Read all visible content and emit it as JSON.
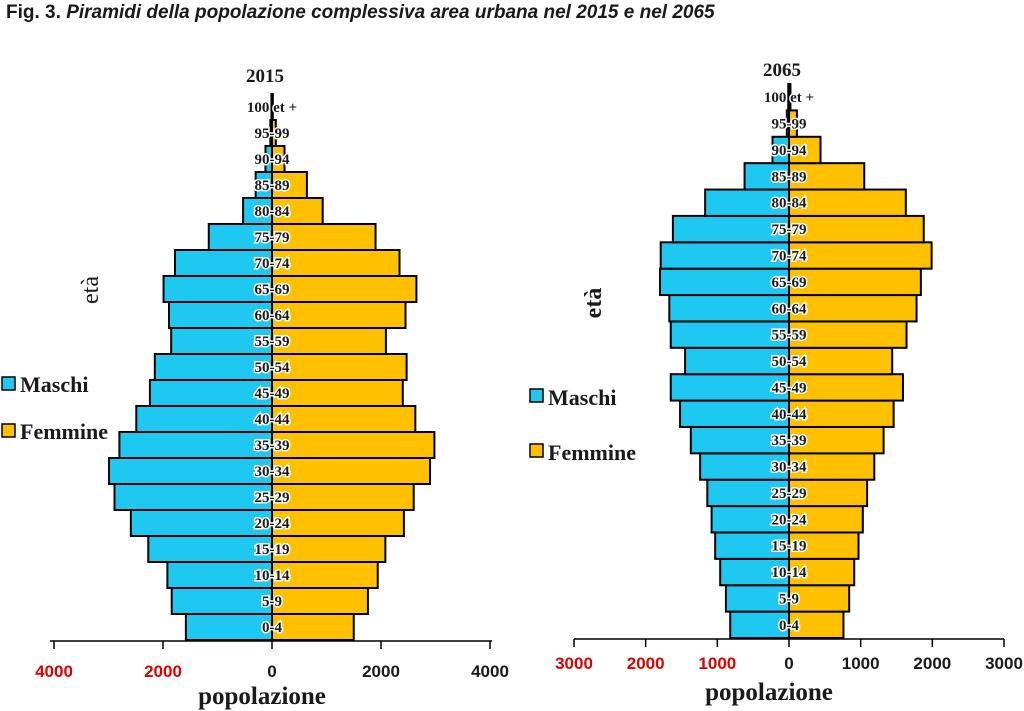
{
  "title": {
    "prefix": "Fig. 3.",
    "text": "Piramidi della popolazione complessiva area urbana nel 2015 e nel 2065"
  },
  "colors": {
    "maschi": "#1fc8f0",
    "femmine": "#ffc000",
    "negative_tick": "#e00000",
    "positive_tick": "#1a1a1a"
  },
  "chart_data": [
    {
      "type": "bar",
      "orientation": "horizontal",
      "subtype": "population-pyramid",
      "title": "2015",
      "xlabel": "popolazione",
      "ylabel": "età",
      "xlim": [
        -4000,
        4000
      ],
      "xticks": [
        -4000,
        -2000,
        0,
        2000,
        4000
      ],
      "xtick_labels": [
        "4000",
        "2000",
        "0",
        "2000",
        "4000"
      ],
      "legend_position": "left",
      "categories": [
        "0-4",
        "5-9",
        "10-14",
        "15-19",
        "20-24",
        "25-29",
        "30-34",
        "35-39",
        "40-44",
        "45-49",
        "50-54",
        "55-59",
        "60-64",
        "65-69",
        "70-74",
        "75-79",
        "80-84",
        "85-89",
        "90-94",
        "95-99",
        "100 et +"
      ],
      "series": [
        {
          "name": "Maschi",
          "side": "left",
          "values": [
            1580,
            1840,
            1920,
            2270,
            2590,
            2890,
            2990,
            2800,
            2490,
            2240,
            2150,
            1850,
            1890,
            1990,
            1780,
            1160,
            530,
            300,
            120,
            30,
            10
          ]
        },
        {
          "name": "Femmine",
          "side": "right",
          "values": [
            1500,
            1760,
            1940,
            2080,
            2420,
            2600,
            2900,
            2980,
            2630,
            2400,
            2470,
            2090,
            2450,
            2650,
            2340,
            1900,
            930,
            640,
            230,
            70,
            15
          ]
        }
      ]
    },
    {
      "type": "bar",
      "orientation": "horizontal",
      "subtype": "population-pyramid",
      "title": "2065",
      "xlabel": "popolazione",
      "ylabel": "età",
      "xlim": [
        -3000,
        3000
      ],
      "xticks": [
        -3000,
        -2000,
        -1000,
        0,
        1000,
        2000,
        3000
      ],
      "xtick_labels": [
        "3000",
        "2000",
        "1000",
        "0",
        "1000",
        "2000",
        "3000"
      ],
      "legend_position": "left",
      "categories": [
        "0-4",
        "5-9",
        "10-14",
        "15-19",
        "20-24",
        "25-29",
        "30-34",
        "35-39",
        "40-44",
        "45-49",
        "50-54",
        "55-59",
        "60-64",
        "65-69",
        "70-74",
        "75-79",
        "80-84",
        "85-89",
        "90-94",
        "95-99",
        "100 et +"
      ],
      "series": [
        {
          "name": "Maschi",
          "side": "left",
          "values": [
            820,
            880,
            960,
            1030,
            1080,
            1140,
            1240,
            1370,
            1520,
            1650,
            1450,
            1650,
            1670,
            1800,
            1790,
            1620,
            1170,
            620,
            230,
            30,
            10
          ]
        },
        {
          "name": "Femmine",
          "side": "right",
          "values": [
            760,
            840,
            910,
            970,
            1030,
            1090,
            1190,
            1320,
            1460,
            1590,
            1440,
            1640,
            1780,
            1840,
            1990,
            1880,
            1630,
            1050,
            440,
            110,
            20
          ]
        }
      ]
    }
  ]
}
